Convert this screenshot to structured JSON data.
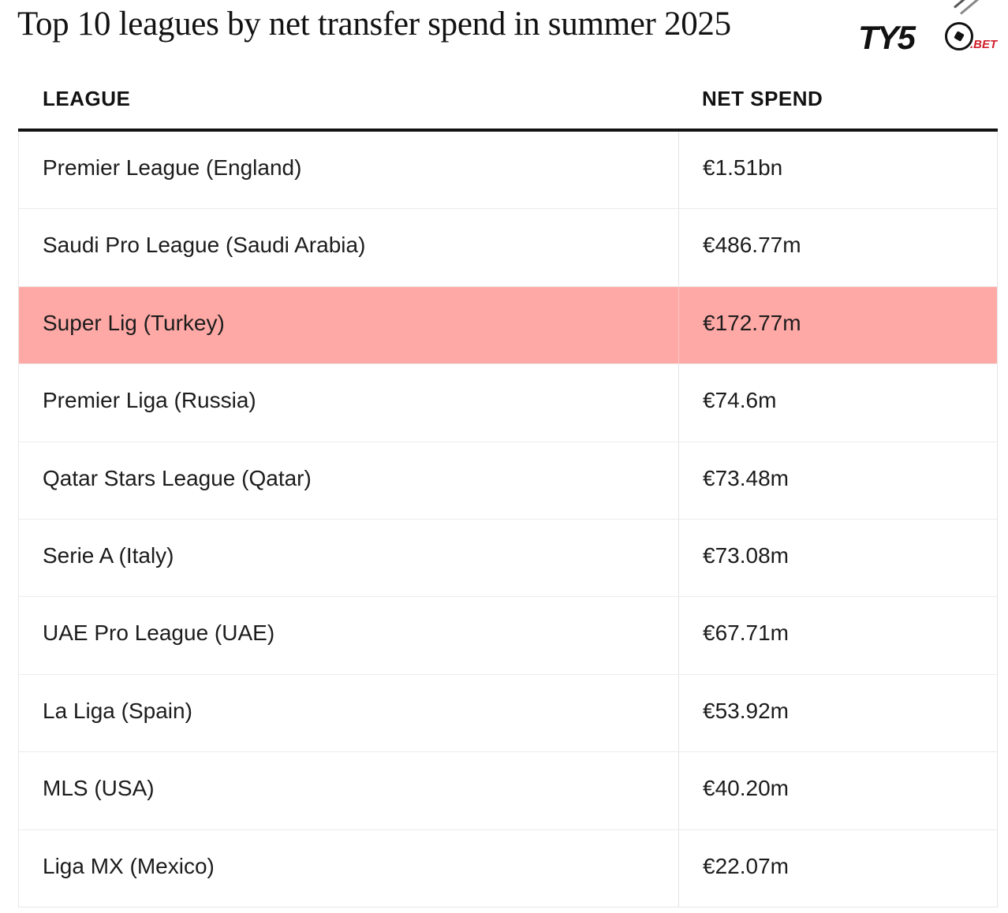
{
  "title": "Top 10 leagues by net transfer spend in summer 2025",
  "logo": {
    "text_main": "TY5",
    "text_sub": ".BET",
    "accent_color": "#d11f2a"
  },
  "highlight_color": "#ffa9a6",
  "chart_data": {
    "type": "table",
    "columns": [
      "LEAGUE",
      "NET SPEND"
    ],
    "rows": [
      {
        "league": "Premier League (England)",
        "net_spend": "€1.51bn",
        "value_eur_m": 1510,
        "highlighted": false
      },
      {
        "league": "Saudi Pro League (Saudi Arabia)",
        "net_spend": "€486.77m",
        "value_eur_m": 486.77,
        "highlighted": false
      },
      {
        "league": "Super Lig (Turkey)",
        "net_spend": "€172.77m",
        "value_eur_m": 172.77,
        "highlighted": true
      },
      {
        "league": "Premier Liga (Russia)",
        "net_spend": "€74.6m",
        "value_eur_m": 74.6,
        "highlighted": false
      },
      {
        "league": "Qatar Stars League (Qatar)",
        "net_spend": "€73.48m",
        "value_eur_m": 73.48,
        "highlighted": false
      },
      {
        "league": "Serie A (Italy)",
        "net_spend": "€73.08m",
        "value_eur_m": 73.08,
        "highlighted": false
      },
      {
        "league": "UAE Pro League (UAE)",
        "net_spend": "€67.71m",
        "value_eur_m": 67.71,
        "highlighted": false
      },
      {
        "league": "La Liga (Spain)",
        "net_spend": "€53.92m",
        "value_eur_m": 53.92,
        "highlighted": false
      },
      {
        "league": "MLS (USA)",
        "net_spend": "€40.20m",
        "value_eur_m": 40.2,
        "highlighted": false
      },
      {
        "league": "Liga MX (Mexico)",
        "net_spend": "€22.07m",
        "value_eur_m": 22.07,
        "highlighted": false
      }
    ]
  }
}
